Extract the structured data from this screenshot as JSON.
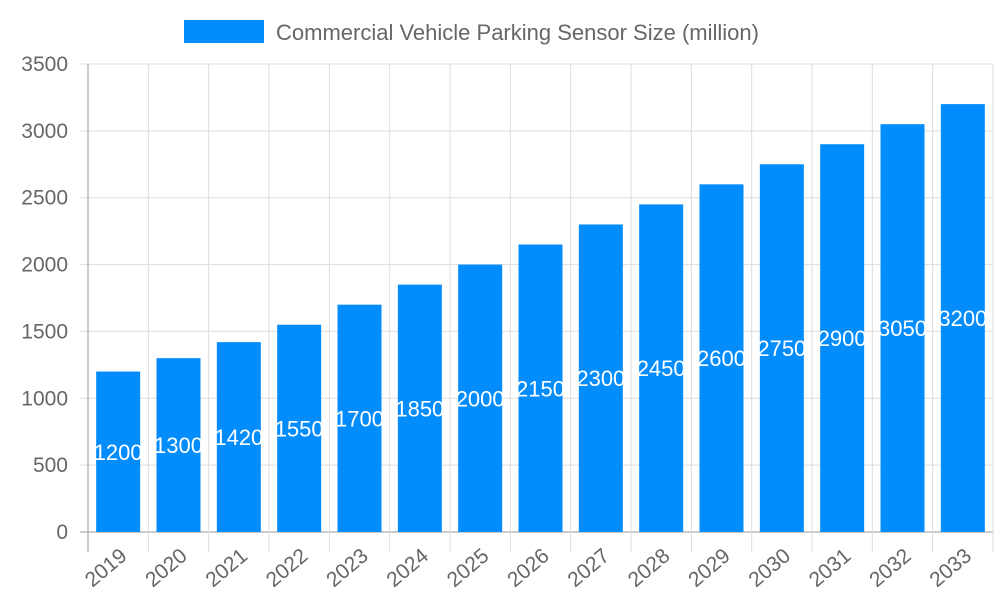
{
  "chart_data": {
    "type": "bar",
    "title": "",
    "xlabel": "",
    "ylabel": "",
    "categories": [
      "2019",
      "2020",
      "2021",
      "2022",
      "2023",
      "2024",
      "2025",
      "2026",
      "2027",
      "2028",
      "2029",
      "2030",
      "2031",
      "2032",
      "2033"
    ],
    "series": [
      {
        "name": "Commercial Vehicle Parking Sensor Size (million)",
        "values": [
          1200,
          1300,
          1420,
          1550,
          1700,
          1850,
          2000,
          2150,
          2300,
          2450,
          2600,
          2750,
          2900,
          3050,
          3200
        ]
      }
    ],
    "ylim": [
      0,
      3500
    ],
    "yticks": [
      0,
      500,
      1000,
      1500,
      2000,
      2500,
      3000,
      3500
    ],
    "grid": true,
    "legend": "top-center",
    "data_labels": true,
    "colors": {
      "bar": "#038cfc",
      "label": "#ffffff",
      "grid": "#dddddd",
      "tick_text": "#666666"
    }
  }
}
